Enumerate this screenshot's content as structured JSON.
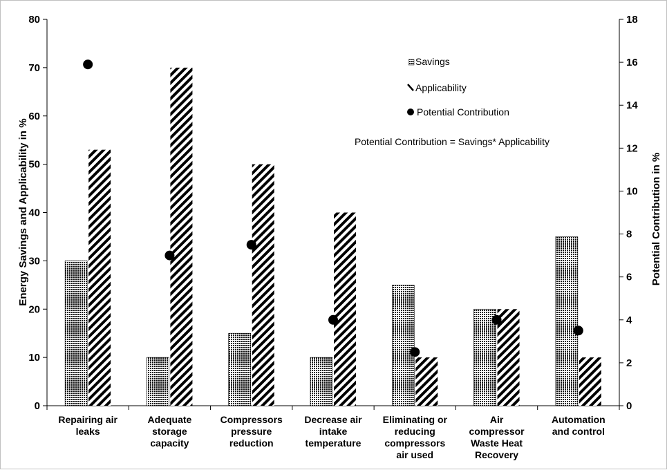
{
  "chart_data": {
    "type": "bar",
    "categories": [
      [
        "Repairing air",
        "leaks"
      ],
      [
        "Adequate",
        "storage",
        "capacity"
      ],
      [
        "Compressors",
        "pressure",
        "reduction"
      ],
      [
        "Decrease air",
        "intake",
        "temperature"
      ],
      [
        "Eliminating or",
        "reducing",
        "compressors",
        "air used"
      ],
      [
        "Air",
        "compressor",
        "Waste Heat",
        "Recovery"
      ],
      [
        "Automation",
        "and control"
      ]
    ],
    "series": [
      {
        "name": "Savings",
        "axis": "left",
        "style": "dots",
        "values": [
          30,
          10,
          15,
          10,
          25,
          20,
          35
        ]
      },
      {
        "name": "Applicability",
        "axis": "left",
        "style": "diagonal",
        "values": [
          53,
          70,
          50,
          40,
          10,
          20,
          10
        ]
      },
      {
        "name": "Potential Contribution",
        "axis": "right",
        "style": "marker",
        "values": [
          15.9,
          7.0,
          7.5,
          4.0,
          2.5,
          4.0,
          3.5
        ]
      }
    ],
    "ylabel": "Energy Savings and Applicability in %",
    "y2label": "Potential Contribution in %",
    "ylim": [
      0,
      80
    ],
    "y2lim": [
      0,
      18
    ],
    "yticks": [
      0,
      10,
      20,
      30,
      40,
      50,
      60,
      70,
      80
    ],
    "y2ticks": [
      0,
      2,
      4,
      6,
      8,
      10,
      12,
      14,
      16,
      18
    ],
    "annotation": "Potential Contribution = Savings* Applicability",
    "grid": false,
    "legend_position": "top-right"
  }
}
